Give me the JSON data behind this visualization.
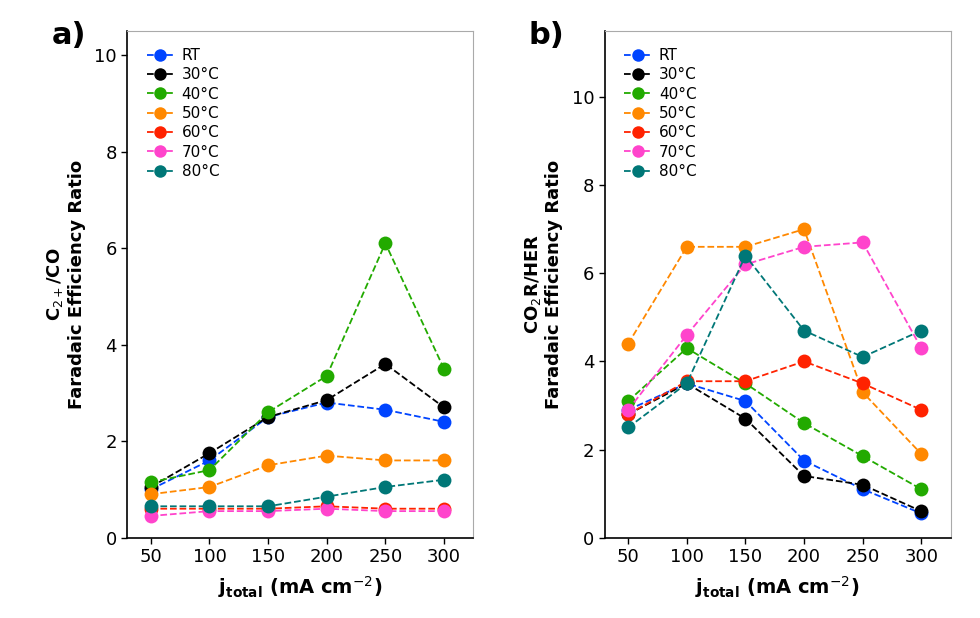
{
  "x": [
    50,
    100,
    150,
    200,
    250,
    300
  ],
  "panel_a": {
    "panel_label": "a)",
    "ylabel_line1": "C$_{2+}$/CO",
    "ylabel_line2": "Faradaic Efficiency Ratio",
    "xlabel": "j$_{\\mathregular{total}}$ (mA cm$^{-2}$)",
    "ylim": [
      0,
      10.5
    ],
    "yticks": [
      0,
      2,
      4,
      6,
      8,
      10
    ],
    "xlim": [
      30,
      325
    ],
    "series": {
      "RT": [
        1.0,
        1.6,
        2.5,
        2.8,
        2.65,
        2.4
      ],
      "30°C": [
        1.05,
        1.75,
        2.5,
        2.85,
        3.6,
        2.7
      ],
      "40°C": [
        1.15,
        1.4,
        2.6,
        3.35,
        6.1,
        3.5
      ],
      "50°C": [
        0.9,
        1.05,
        1.5,
        1.7,
        1.6,
        1.6
      ],
      "60°C": [
        0.6,
        0.6,
        0.6,
        0.65,
        0.6,
        0.6
      ],
      "70°C": [
        0.45,
        0.55,
        0.55,
        0.6,
        0.55,
        0.55
      ],
      "80°C": [
        0.65,
        0.65,
        0.65,
        0.85,
        1.05,
        1.2
      ]
    }
  },
  "panel_b": {
    "panel_label": "b)",
    "ylabel_line1": "CO$_2$R/HER",
    "ylabel_line2": "Faradaic Efficiency Ratio",
    "xlabel": "j$_{\\mathregular{total}}$ (mA cm$^{-2}$)",
    "ylim": [
      0,
      11.5
    ],
    "yticks": [
      0,
      2,
      4,
      6,
      8,
      10
    ],
    "xlim": [
      30,
      325
    ],
    "series": {
      "RT": [
        2.9,
        3.5,
        3.1,
        1.75,
        1.1,
        0.55
      ],
      "30°C": [
        2.8,
        3.5,
        2.7,
        1.4,
        1.2,
        0.6
      ],
      "40°C": [
        3.1,
        4.3,
        3.5,
        2.6,
        1.85,
        1.1
      ],
      "50°C": [
        4.4,
        6.6,
        6.6,
        7.0,
        3.3,
        1.9
      ],
      "60°C": [
        2.8,
        3.55,
        3.55,
        4.0,
        3.5,
        2.9
      ],
      "70°C": [
        2.9,
        4.6,
        6.2,
        6.6,
        6.7,
        4.3
      ],
      "80°C": [
        2.5,
        3.5,
        6.4,
        4.7,
        4.1,
        4.7
      ]
    }
  },
  "colors": {
    "RT": "#0044ff",
    "30°C": "#000000",
    "40°C": "#22aa00",
    "50°C": "#ff8800",
    "60°C": "#ff2200",
    "70°C": "#ff44cc",
    "80°C": "#007777"
  },
  "legend_order": [
    "RT",
    "30°C",
    "40°C",
    "50°C",
    "60°C",
    "70°C",
    "80°C"
  ]
}
